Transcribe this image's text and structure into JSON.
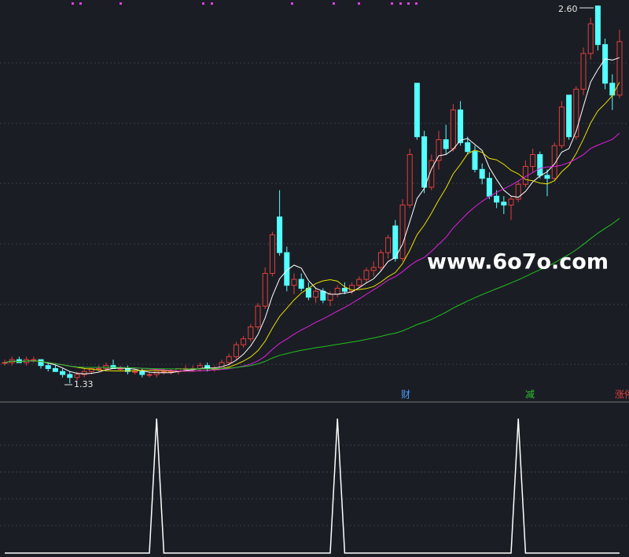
{
  "chart_data": {
    "type": "candlestick",
    "watermark": "www.6o7o.com",
    "annotations": [
      "2.60",
      "1.33"
    ],
    "signals": [
      "财",
      "减",
      "涨停"
    ],
    "open": [
      1.4,
      1.4,
      1.41,
      1.4,
      1.41,
      1.41,
      1.39,
      1.38,
      1.37,
      1.36,
      1.35,
      1.36,
      1.37,
      1.38,
      1.38,
      1.39,
      1.38,
      1.38,
      1.37,
      1.37,
      1.36,
      1.36,
      1.37,
      1.37,
      1.37,
      1.38,
      1.38,
      1.38,
      1.39,
      1.38,
      1.38,
      1.4,
      1.42,
      1.46,
      1.48,
      1.52,
      1.59,
      1.7,
      1.89,
      1.77,
      1.66,
      1.68,
      1.65,
      1.62,
      1.64,
      1.61,
      1.63,
      1.65,
      1.64,
      1.66,
      1.68,
      1.71,
      1.72,
      1.77,
      1.86,
      1.75,
      1.93,
      2.34,
      2.16,
      1.99,
      2.08,
      2.15,
      2.12,
      2.25,
      2.14,
      2.11,
      2.05,
      2.02,
      1.96,
      1.94,
      1.93,
      1.95,
      2.0,
      2.06,
      2.1,
      2.03,
      2.02,
      2.13,
      2.3,
      2.16,
      2.32,
      2.44,
      2.6,
      2.47,
      2.34,
      2.3
    ],
    "high": [
      1.41,
      1.42,
      1.42,
      1.42,
      1.42,
      1.41,
      1.4,
      1.39,
      1.38,
      1.37,
      1.37,
      1.38,
      1.38,
      1.39,
      1.4,
      1.41,
      1.39,
      1.39,
      1.38,
      1.38,
      1.37,
      1.37,
      1.38,
      1.38,
      1.38,
      1.39,
      1.39,
      1.4,
      1.4,
      1.39,
      1.41,
      1.43,
      1.47,
      1.49,
      1.53,
      1.6,
      1.72,
      1.84,
      1.98,
      1.79,
      1.7,
      1.7,
      1.67,
      1.65,
      1.65,
      1.64,
      1.66,
      1.67,
      1.67,
      1.69,
      1.72,
      1.74,
      1.78,
      1.83,
      1.88,
      1.95,
      2.12,
      2.34,
      2.18,
      2.1,
      2.18,
      2.2,
      2.27,
      2.28,
      2.16,
      2.13,
      2.07,
      2.04,
      1.98,
      1.96,
      1.96,
      2.01,
      2.08,
      2.12,
      2.11,
      2.05,
      2.14,
      2.28,
      2.3,
      2.33,
      2.46,
      2.56,
      2.6,
      2.49,
      2.37,
      2.52
    ],
    "low": [
      1.39,
      1.39,
      1.4,
      1.39,
      1.4,
      1.38,
      1.37,
      1.37,
      1.35,
      1.33,
      1.34,
      1.35,
      1.36,
      1.37,
      1.37,
      1.38,
      1.37,
      1.36,
      1.36,
      1.35,
      1.35,
      1.35,
      1.36,
      1.36,
      1.36,
      1.37,
      1.37,
      1.37,
      1.37,
      1.37,
      1.38,
      1.39,
      1.41,
      1.45,
      1.47,
      1.51,
      1.58,
      1.69,
      1.76,
      1.64,
      1.63,
      1.64,
      1.61,
      1.6,
      1.6,
      1.59,
      1.62,
      1.63,
      1.63,
      1.65,
      1.67,
      1.69,
      1.71,
      1.75,
      1.74,
      1.74,
      1.92,
      2.15,
      1.97,
      1.98,
      2.05,
      2.1,
      2.11,
      2.13,
      2.1,
      2.04,
      2.0,
      1.95,
      1.92,
      1.9,
      1.88,
      1.94,
      1.99,
      2.04,
      2.02,
      1.96,
      2.01,
      2.12,
      2.15,
      2.15,
      2.3,
      2.42,
      2.45,
      2.32,
      2.25,
      2.29
    ],
    "close": [
      1.4,
      1.41,
      1.4,
      1.41,
      1.41,
      1.39,
      1.38,
      1.37,
      1.36,
      1.35,
      1.36,
      1.37,
      1.38,
      1.38,
      1.39,
      1.38,
      1.38,
      1.37,
      1.37,
      1.36,
      1.36,
      1.37,
      1.37,
      1.37,
      1.38,
      1.38,
      1.38,
      1.39,
      1.38,
      1.38,
      1.4,
      1.42,
      1.46,
      1.48,
      1.52,
      1.59,
      1.7,
      1.83,
      1.77,
      1.66,
      1.68,
      1.65,
      1.62,
      1.64,
      1.61,
      1.63,
      1.65,
      1.64,
      1.66,
      1.68,
      1.71,
      1.72,
      1.77,
      1.82,
      1.75,
      1.93,
      2.1,
      2.16,
      1.99,
      2.08,
      2.15,
      2.12,
      2.25,
      2.14,
      2.11,
      2.05,
      2.02,
      1.96,
      1.94,
      1.93,
      1.95,
      2.0,
      2.06,
      2.1,
      2.03,
      2.02,
      2.13,
      2.26,
      2.16,
      2.32,
      2.44,
      2.54,
      2.47,
      2.34,
      2.3,
      2.48
    ],
    "indicator": [
      0,
      0,
      0,
      0,
      0,
      0,
      0,
      0,
      0,
      0,
      0,
      0,
      0,
      0,
      0,
      0,
      0,
      0,
      0,
      0,
      0,
      1,
      0,
      0,
      0,
      0,
      0,
      0,
      0,
      0,
      0,
      0,
      0,
      0,
      0,
      0,
      0,
      0,
      0,
      0,
      0,
      0,
      0,
      0,
      0,
      0,
      1,
      0,
      0,
      0,
      0,
      0,
      0,
      0,
      0,
      0,
      0,
      0,
      0,
      0,
      0,
      0,
      0,
      0,
      0,
      0,
      0,
      0,
      0,
      0,
      0,
      1,
      0,
      0,
      0,
      0,
      0,
      0,
      0,
      0,
      0,
      0,
      0,
      0,
      0,
      0
    ],
    "ylim": [
      1.27,
      2.62
    ],
    "indicator_ylim": [
      0,
      1
    ],
    "colors": {
      "up": "#e0403c",
      "down": "#54ffff",
      "ma": [
        "#ffffff",
        "#e8e000",
        "#e020e0",
        "#20c020"
      ],
      "indicator": "#ffffff"
    }
  }
}
